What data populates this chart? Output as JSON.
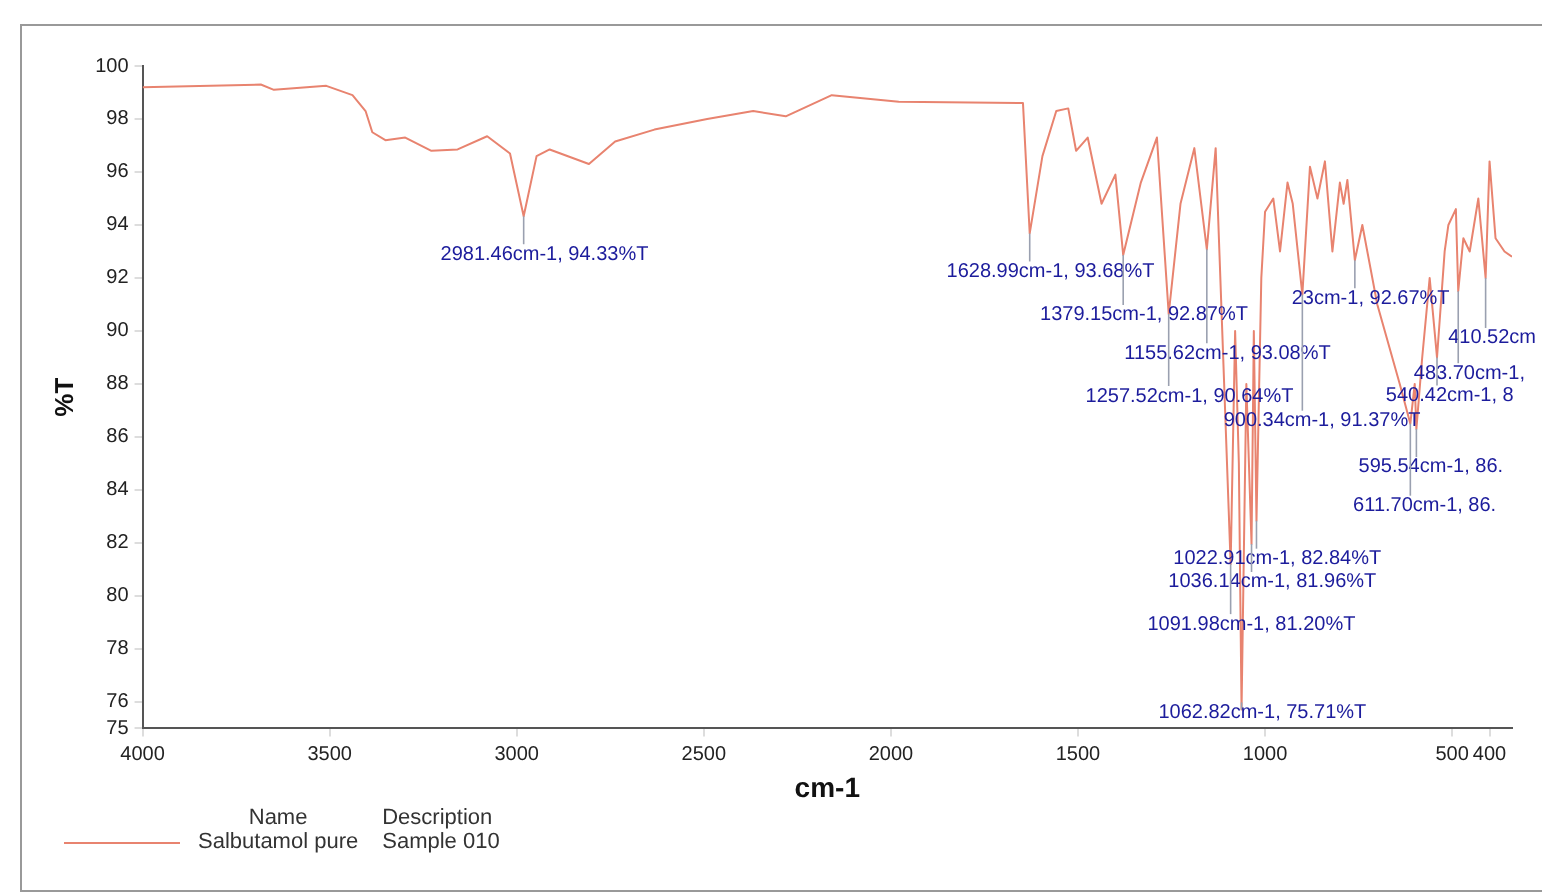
{
  "chart_data": {
    "type": "line",
    "xlabel": "cm-1",
    "ylabel": "%T",
    "legend_title": "Name",
    "legend": "bottom",
    "grid": false,
    "marker": "none",
    "line_style": "solid",
    "xlim": [
      4000,
      340
    ],
    "xticks": [
      4000,
      3500,
      3000,
      2500,
      2000,
      1500,
      1000,
      500,
      400
    ],
    "ylim": [
      75,
      100
    ],
    "yticks": [
      75,
      76,
      78,
      80,
      82,
      84,
      86,
      88,
      90,
      92,
      94,
      96,
      98,
      100
    ],
    "series": [
      {
        "name": "Salbutamol pure",
        "color": "#e8836f",
        "x": [
          4000,
          3684,
          3649,
          3509,
          3439,
          3404,
          3386,
          3351,
          3298,
          3228,
          3158,
          3079,
          3018,
          2981.46,
          2947,
          2912,
          2807,
          2737,
          2632,
          2491,
          2368,
          2281,
          2158,
          1979,
          1647,
          1628.99,
          1595,
          1558,
          1526,
          1505,
          1474,
          1437,
          1400,
          1379.15,
          1332,
          1289,
          1257.52,
          1226,
          1189,
          1155.62,
          1132,
          1091.98,
          1080,
          1070,
          1062.82,
          1050,
          1036.14,
          1030,
          1022.91,
          1010,
          1000,
          978,
          960,
          940,
          926,
          900.34,
          880,
          860,
          840,
          820,
          800,
          790,
          780,
          760,
          740,
          700,
          680,
          640,
          611.7,
          600,
          595.54,
          580,
          560,
          540.42,
          520,
          510,
          490,
          483.7,
          470,
          453,
          430,
          410.52,
          400,
          384,
          360,
          340
        ],
        "values": [
          99.2,
          99.3,
          99.1,
          99.25,
          98.9,
          98.3,
          97.5,
          97.2,
          97.3,
          96.8,
          96.85,
          97.35,
          96.7,
          94.33,
          96.6,
          96.85,
          96.3,
          97.15,
          97.6,
          98.0,
          98.3,
          98.1,
          98.9,
          98.65,
          98.6,
          93.68,
          96.6,
          98.3,
          98.4,
          96.8,
          97.3,
          94.8,
          95.9,
          92.87,
          95.6,
          97.3,
          90.64,
          94.8,
          96.9,
          93.08,
          96.9,
          81.2,
          90,
          85,
          75.71,
          88,
          81.96,
          90,
          82.84,
          92,
          94.5,
          95,
          93,
          95.6,
          94.8,
          91.37,
          96.2,
          95,
          96.4,
          93,
          95.6,
          94.8,
          95.7,
          92.67,
          94,
          91,
          90,
          88,
          86.5,
          88,
          86.3,
          89,
          92,
          89,
          93,
          94,
          94.6,
          91.5,
          93.5,
          93,
          95,
          92,
          96.4,
          93.5,
          93,
          92.8
        ]
      }
    ],
    "annotations": [
      {
        "text": "2981.46cm-1, 94.33%T",
        "x": 2981.46,
        "y": 94.33
      },
      {
        "text": "1628.99cm-1, 93.68%T",
        "x": 1628.99,
        "y": 93.68
      },
      {
        "text": "1379.15cm-1, 92.87%T",
        "x": 1379.15,
        "y": 92.87
      },
      {
        "text": "23cm-1, 92.67%T",
        "x": 760,
        "y": 92.67
      },
      {
        "text": "410.52cm",
        "x": 410.52,
        "y": 92
      },
      {
        "text": "1155.62cm-1, 93.08%T",
        "x": 1155.62,
        "y": 93.08
      },
      {
        "text": "483.70cm-1,",
        "x": 483.7,
        "y": 91.5
      },
      {
        "text": "1257.52cm-1, 90.64%T",
        "x": 1257.52,
        "y": 90.64
      },
      {
        "text": "540.42cm-1, 8",
        "x": 540.42,
        "y": 89
      },
      {
        "text": "900.34cm-1, 91.37%T",
        "x": 900.34,
        "y": 91.37
      },
      {
        "text": "595.54cm-1, 86.",
        "x": 595.54,
        "y": 86.3
      },
      {
        "text": "611.70cm-1, 86.",
        "x": 611.7,
        "y": 86.5
      },
      {
        "text": "1022.91cm-1, 82.84%T",
        "x": 1022.91,
        "y": 82.84
      },
      {
        "text": "1036.14cm-1, 81.96%T",
        "x": 1036.14,
        "y": 81.96
      },
      {
        "text": "1091.98cm-1, 81.20%T",
        "x": 1091.98,
        "y": 81.2
      },
      {
        "text": "1062.82cm-1, 75.71%T",
        "x": 1062.82,
        "y": 75.71
      },
      "Description",
      "Sample 010"
    ]
  }
}
